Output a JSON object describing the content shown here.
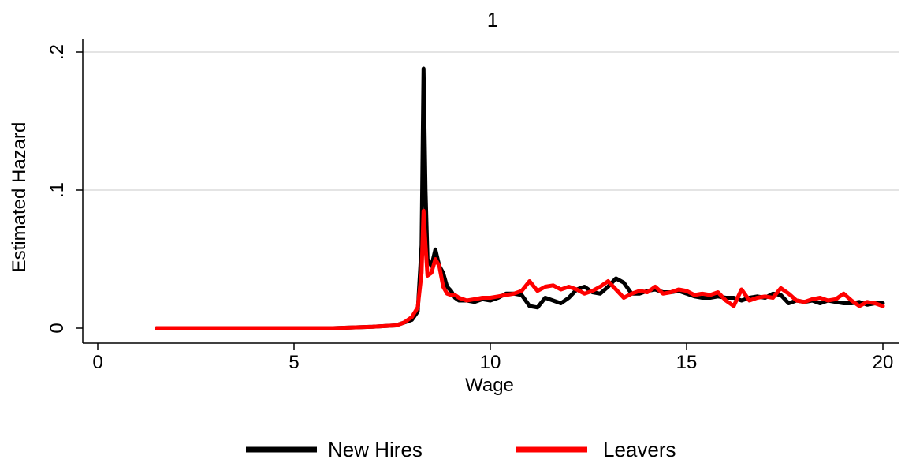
{
  "chart_data": {
    "type": "line",
    "title": "1",
    "xlabel": "Wage",
    "ylabel": "Estimated Hazard",
    "xlim": [
      0,
      20
    ],
    "ylim": [
      0,
      0.2
    ],
    "xticks": [
      {
        "value": 0,
        "label": "0"
      },
      {
        "value": 5,
        "label": "5"
      },
      {
        "value": 10,
        "label": "10"
      },
      {
        "value": 15,
        "label": "15"
      },
      {
        "value": 20,
        "label": "20"
      }
    ],
    "yticks": [
      {
        "value": 0,
        "label": "0"
      },
      {
        "value": 0.1,
        "label": ".1"
      },
      {
        "value": 0.2,
        "label": ".2"
      }
    ],
    "grid": true,
    "legend_position": "bottom",
    "series": [
      {
        "name": "New Hires",
        "color": "#000000",
        "x": [
          1.5,
          2,
          3,
          4,
          5,
          6,
          7,
          7.6,
          7.8,
          8.0,
          8.15,
          8.25,
          8.3,
          8.35,
          8.4,
          8.5,
          8.6,
          8.7,
          8.8,
          8.9,
          9.0,
          9.1,
          9.2,
          9.4,
          9.6,
          9.8,
          10.0,
          10.2,
          10.4,
          10.6,
          10.8,
          11.0,
          11.2,
          11.4,
          11.6,
          11.8,
          12.0,
          12.2,
          12.4,
          12.6,
          12.8,
          13.0,
          13.2,
          13.4,
          13.6,
          13.8,
          14.0,
          14.2,
          14.4,
          14.6,
          14.8,
          15.0,
          15.2,
          15.4,
          15.6,
          15.8,
          16.0,
          16.2,
          16.4,
          16.6,
          16.8,
          17.0,
          17.2,
          17.4,
          17.6,
          17.8,
          18.0,
          18.2,
          18.4,
          18.6,
          18.8,
          19.0,
          19.2,
          19.4,
          19.6,
          19.8,
          20.0
        ],
        "y": [
          0,
          0,
          0,
          0,
          0,
          0,
          0.001,
          0.002,
          0.004,
          0.006,
          0.012,
          0.06,
          0.188,
          0.1,
          0.05,
          0.045,
          0.057,
          0.045,
          0.04,
          0.03,
          0.027,
          0.022,
          0.02,
          0.02,
          0.019,
          0.021,
          0.02,
          0.022,
          0.025,
          0.025,
          0.024,
          0.016,
          0.015,
          0.022,
          0.02,
          0.018,
          0.022,
          0.028,
          0.03,
          0.026,
          0.025,
          0.03,
          0.036,
          0.033,
          0.025,
          0.025,
          0.027,
          0.028,
          0.026,
          0.026,
          0.027,
          0.025,
          0.023,
          0.022,
          0.022,
          0.023,
          0.022,
          0.022,
          0.02,
          0.022,
          0.023,
          0.022,
          0.025,
          0.024,
          0.018,
          0.02,
          0.019,
          0.02,
          0.018,
          0.02,
          0.019,
          0.018,
          0.018,
          0.019,
          0.017,
          0.018,
          0.018
        ]
      },
      {
        "name": "Leavers",
        "color": "#ff0000",
        "x": [
          1.5,
          2,
          3,
          4,
          5,
          6,
          7,
          7.6,
          7.8,
          8.0,
          8.15,
          8.25,
          8.3,
          8.35,
          8.4,
          8.5,
          8.6,
          8.7,
          8.8,
          8.9,
          9.0,
          9.1,
          9.2,
          9.4,
          9.6,
          9.8,
          10.0,
          10.2,
          10.4,
          10.6,
          10.8,
          11.0,
          11.2,
          11.4,
          11.6,
          11.8,
          12.0,
          12.2,
          12.4,
          12.6,
          12.8,
          13.0,
          13.2,
          13.4,
          13.6,
          13.8,
          14.0,
          14.2,
          14.4,
          14.6,
          14.8,
          15.0,
          15.2,
          15.4,
          15.6,
          15.8,
          16.0,
          16.2,
          16.4,
          16.6,
          16.8,
          17.0,
          17.2,
          17.4,
          17.6,
          17.8,
          18.0,
          18.2,
          18.4,
          18.6,
          18.8,
          19.0,
          19.2,
          19.4,
          19.6,
          19.8,
          20.0
        ],
        "y": [
          0,
          0,
          0,
          0,
          0,
          0,
          0.001,
          0.002,
          0.004,
          0.008,
          0.015,
          0.04,
          0.085,
          0.06,
          0.038,
          0.04,
          0.05,
          0.045,
          0.03,
          0.025,
          0.024,
          0.024,
          0.022,
          0.02,
          0.021,
          0.022,
          0.022,
          0.023,
          0.024,
          0.025,
          0.027,
          0.034,
          0.027,
          0.03,
          0.031,
          0.028,
          0.03,
          0.028,
          0.025,
          0.027,
          0.03,
          0.034,
          0.028,
          0.022,
          0.025,
          0.027,
          0.026,
          0.03,
          0.025,
          0.026,
          0.028,
          0.027,
          0.024,
          0.025,
          0.024,
          0.026,
          0.02,
          0.016,
          0.028,
          0.02,
          0.022,
          0.023,
          0.022,
          0.029,
          0.025,
          0.02,
          0.019,
          0.021,
          0.022,
          0.02,
          0.021,
          0.025,
          0.02,
          0.016,
          0.019,
          0.018,
          0.016
        ]
      }
    ]
  }
}
